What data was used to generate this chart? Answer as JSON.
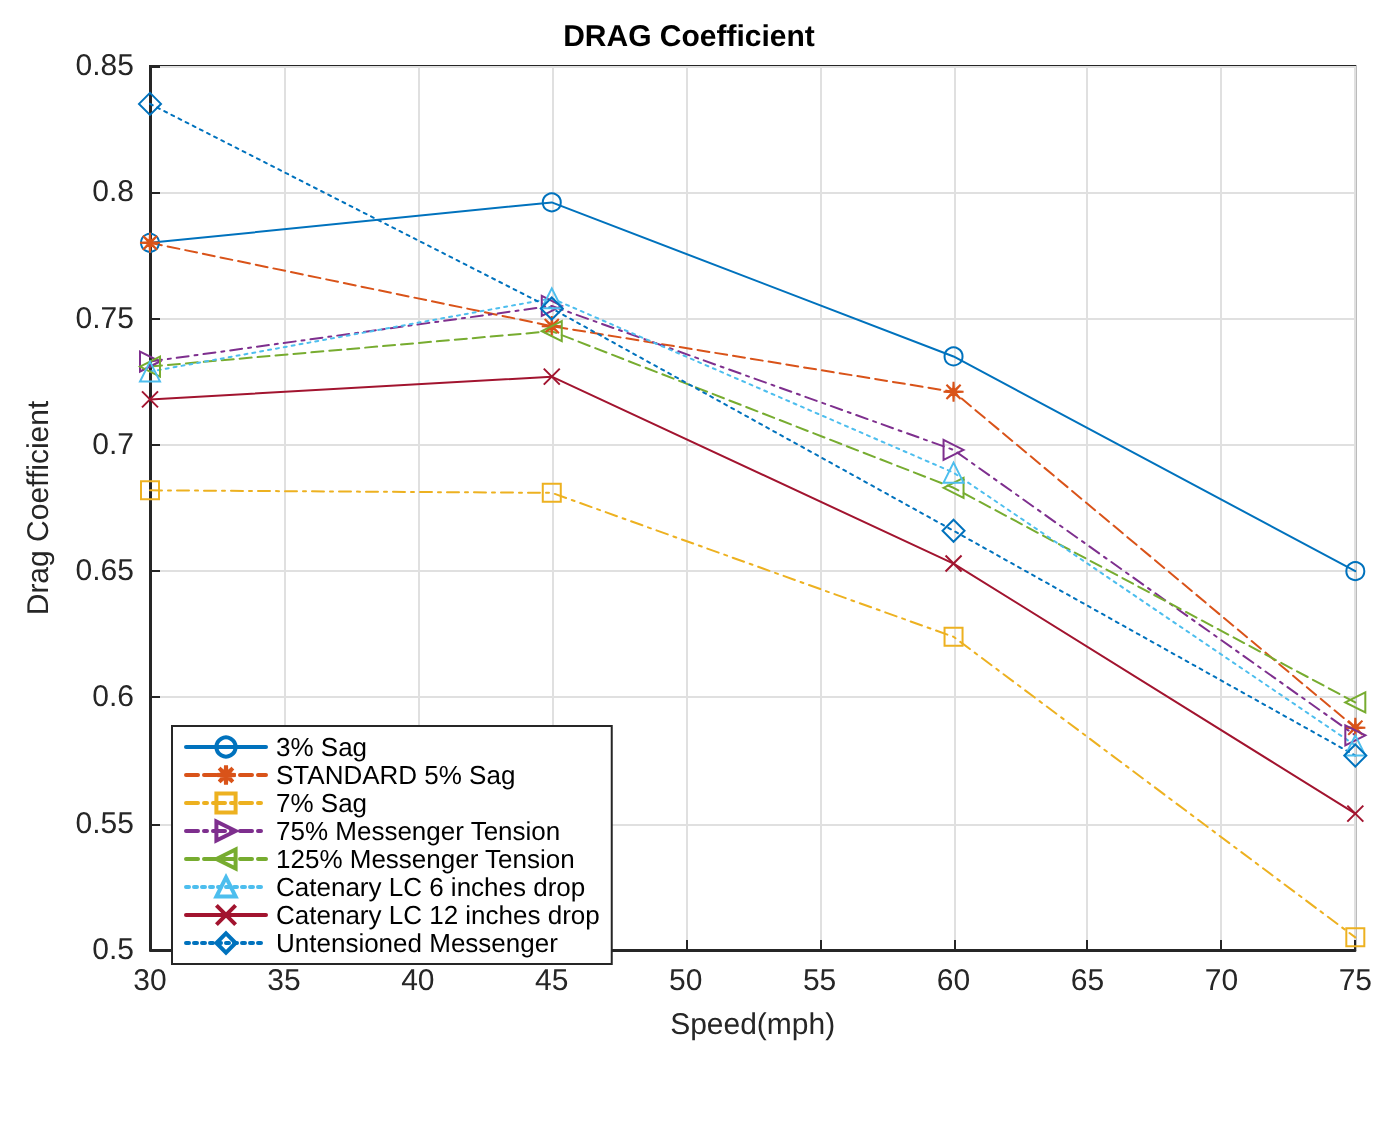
{
  "chart_data": {
    "type": "line",
    "title": "DRAG Coefficient",
    "xlabel": "Speed(mph)",
    "ylabel": "Drag Coefficient",
    "x": [
      30,
      45,
      60,
      75
    ],
    "series": [
      {
        "name": "3% Sag",
        "color": "#0072bd",
        "marker": "circle",
        "line_style": "solid",
        "values": [
          0.78,
          0.796,
          0.735,
          0.65
        ]
      },
      {
        "name": "STANDARD 5% Sag",
        "color": "#d95319",
        "marker": "star",
        "line_style": "dashed",
        "values": [
          0.78,
          0.747,
          0.721,
          0.588
        ]
      },
      {
        "name": "7% Sag",
        "color": "#edb120",
        "marker": "square",
        "line_style": "dashdot",
        "values": [
          0.682,
          0.681,
          0.624,
          0.505
        ]
      },
      {
        "name": "75% Messenger Tension",
        "color": "#7e2f8e",
        "marker": "triangle-right",
        "line_style": "dashdot",
        "values": [
          0.733,
          0.755,
          0.698,
          0.585
        ]
      },
      {
        "name": "125% Messenger Tension",
        "color": "#77ac30",
        "marker": "triangle-left",
        "line_style": "dashed",
        "values": [
          0.731,
          0.745,
          0.683,
          0.598
        ]
      },
      {
        "name": "Catenary LC 6 inches drop",
        "color": "#4dbeee",
        "marker": "triangle",
        "line_style": "dotted",
        "values": [
          0.729,
          0.758,
          0.689,
          0.581
        ]
      },
      {
        "name": "Catenary LC 12 inches drop",
        "color": "#a2142f",
        "marker": "cross",
        "line_style": "solid",
        "values": [
          0.718,
          0.727,
          0.653,
          0.554
        ]
      },
      {
        "name": "Untensioned Messenger",
        "color": "#0072bd",
        "marker": "diamond",
        "line_style": "dotted",
        "values": [
          0.835,
          0.754,
          0.666,
          0.577
        ]
      }
    ],
    "xlim": [
      30,
      75
    ],
    "xticks": [
      30,
      35,
      40,
      45,
      50,
      55,
      60,
      65,
      70,
      75
    ],
    "ylim": [
      0.5,
      0.85
    ],
    "yticks": [
      0.5,
      0.55,
      0.6,
      0.65,
      0.7,
      0.75,
      0.8,
      0.85
    ],
    "grid": true,
    "legend": "bottom left"
  }
}
